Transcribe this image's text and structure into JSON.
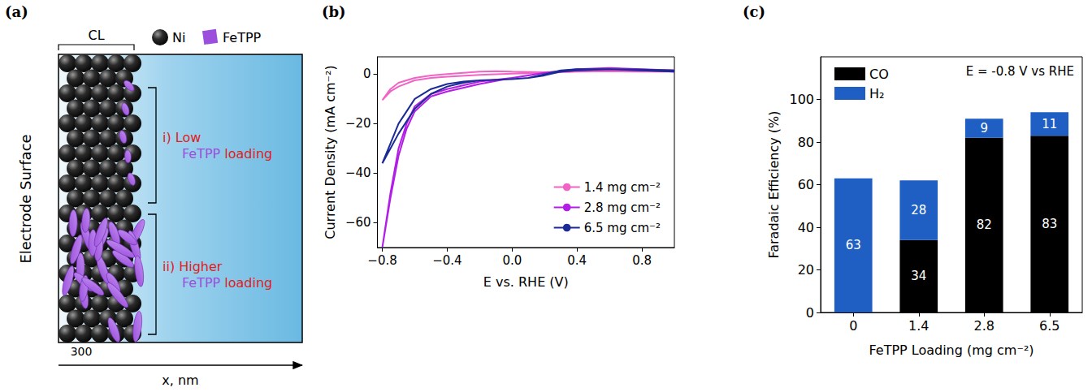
{
  "panel_a": {
    "panel": "(a)",
    "cl_label": "CL",
    "species": [
      {
        "name": "Ni",
        "color": "#2b2b2b"
      },
      {
        "name": "FeTPP",
        "color": "#9b4fdc"
      }
    ],
    "side_label": "Electrode Surface",
    "regions": [
      {
        "line1": "i) Low",
        "species": "FeTPP",
        "suffix": "loading"
      },
      {
        "line1": "ii) Higher",
        "species": "FeTPP",
        "suffix": "loading"
      }
    ],
    "x_tick": 300,
    "x_label": "x, nm"
  },
  "chart_data": [
    {
      "panel": "(b)",
      "type": "line",
      "x_label": "E vs. RHE (V)",
      "y_label": "Current Density (mA cm⁻²)",
      "xlim": [
        -0.83,
        1.0
      ],
      "xticks": [
        {
          "value": -0.8,
          "label": "−0.8"
        },
        {
          "value": -0.4,
          "label": "−0.4"
        },
        {
          "value": 0,
          "label": "0.0"
        },
        {
          "value": 0.4,
          "label": "0.4"
        },
        {
          "value": 0.8,
          "label": "0.8"
        }
      ],
      "ylim": [
        -70,
        7
      ],
      "yticks": [
        {
          "value": -60,
          "label": "−60"
        },
        {
          "value": -40,
          "label": "−40"
        },
        {
          "value": -20,
          "label": "−20"
        },
        0
      ],
      "grid": false,
      "legend": "lower right",
      "series": [
        {
          "name": "1.4 mg cm⁻²",
          "color": "#f064c4",
          "x": [
            1.0,
            0.8,
            0.6,
            0.4,
            0.2,
            0.0,
            -0.2,
            -0.4,
            -0.5,
            -0.6,
            -0.7,
            -0.75,
            -0.8,
            -0.75,
            -0.7,
            -0.6,
            -0.5,
            -0.4,
            -0.2,
            -0.1,
            0.0,
            0.2,
            0.4,
            0.6,
            0.8,
            1.0
          ],
          "values": [
            1,
            1,
            1.2,
            1,
            0.5,
            0.2,
            -0.3,
            -1,
            -1.5,
            -2.5,
            -5,
            -7,
            -10.5,
            -6,
            -3.5,
            -1.5,
            -0.5,
            0,
            1,
            1.2,
            1,
            0.8,
            1.2,
            1.5,
            1.5,
            1.5
          ]
        },
        {
          "name": "2.8 mg cm⁻²",
          "color": "#b21ee6",
          "x": [
            1.0,
            0.8,
            0.6,
            0.4,
            0.2,
            0.0,
            -0.2,
            -0.4,
            -0.5,
            -0.6,
            -0.65,
            -0.7,
            -0.75,
            -0.8,
            -0.75,
            -0.7,
            -0.65,
            -0.6,
            -0.5,
            -0.4,
            -0.2,
            0.0,
            0.1,
            0.2,
            0.4,
            0.6,
            0.8,
            1.0
          ],
          "values": [
            1,
            1.5,
            2,
            1.5,
            0.5,
            -1.5,
            -4,
            -7,
            -9,
            -15,
            -22,
            -33,
            -50,
            -70,
            -48,
            -30,
            -20,
            -13,
            -8,
            -6,
            -3,
            -1.5,
            -0.5,
            0.5,
            2,
            2.5,
            2,
            1.5
          ]
        },
        {
          "name": "6.5 mg cm⁻²",
          "color": "#1c2a96",
          "x": [
            1.0,
            0.8,
            0.6,
            0.4,
            0.3,
            0.2,
            0.1,
            0.0,
            -0.2,
            -0.3,
            -0.4,
            -0.5,
            -0.6,
            -0.7,
            -0.75,
            -0.8,
            -0.75,
            -0.7,
            -0.6,
            -0.5,
            -0.4,
            -0.3,
            -0.2,
            0.0,
            0.1,
            0.2,
            0.3,
            0.4,
            0.6,
            0.8,
            1.0
          ],
          "values": [
            1,
            1.5,
            2,
            1.5,
            1,
            -0.5,
            -1.5,
            -2,
            -2.5,
            -3.5,
            -5,
            -8,
            -14,
            -24,
            -30,
            -36,
            -28,
            -20,
            -10,
            -6,
            -4,
            -3,
            -2.5,
            -2,
            -1.5,
            0,
            1.5,
            2,
            2,
            1.8,
            1.5
          ]
        }
      ]
    },
    {
      "panel": "(c)",
      "type": "bar",
      "stacked": true,
      "data_labels": true,
      "annotation": "E = -0.8 V vs RHE",
      "x_label": "FeTPP Loading (mg cm⁻²)",
      "y_label": "Faradaic Efficiency (%)",
      "categories": [
        "0",
        "1.4",
        "2.8",
        "6.5"
      ],
      "ylim": [
        0,
        120
      ],
      "yticks": [
        0,
        20,
        40,
        60,
        80,
        100
      ],
      "grid": false,
      "legend": "upper left",
      "series": [
        {
          "name": "CO",
          "color": "#000000",
          "values": [
            null,
            34,
            82,
            83
          ]
        },
        {
          "name": "H₂",
          "color": "#1f5fc4",
          "values": [
            63,
            28,
            9,
            11
          ]
        }
      ]
    }
  ]
}
